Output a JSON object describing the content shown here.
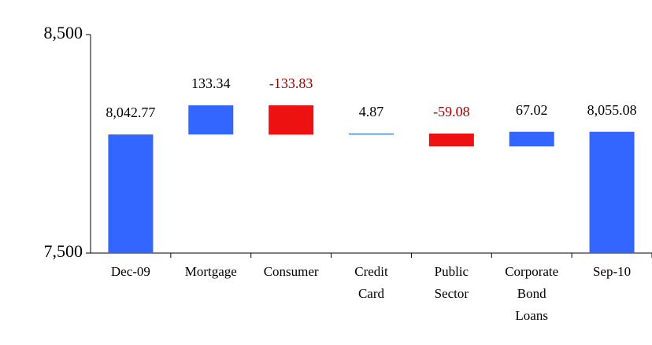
{
  "chart_data": {
    "type": "waterfall",
    "categories": [
      "Dec-09",
      "Mortgage",
      "Consumer",
      "Credit Card",
      "Public Sector",
      "Corporate Bond Loans",
      "Sep-10"
    ],
    "values": [
      8042.77,
      133.34,
      -133.83,
      4.87,
      -59.08,
      67.02,
      8055.08
    ],
    "value_labels": [
      "8,042.77",
      "133.34",
      "-133.83",
      "4.87",
      "-59.08",
      "67.02",
      "8,055.08"
    ],
    "measure": [
      "total",
      "relative",
      "relative",
      "relative",
      "relative",
      "relative",
      "total"
    ],
    "colors": [
      "#3366ff",
      "#3366ff",
      "#ee1111",
      "#2e78d0",
      "#ee1111",
      "#3366ff",
      "#3366ff"
    ],
    "label_colors": [
      "#000000",
      "#000000",
      "#a00000",
      "#000000",
      "#a00000",
      "#000000",
      "#000000"
    ],
    "ylim": [
      7500,
      8500
    ],
    "yticks": [
      {
        "value": 7500,
        "label": "7,500"
      },
      {
        "value": 8500,
        "label": "8,500"
      }
    ]
  }
}
